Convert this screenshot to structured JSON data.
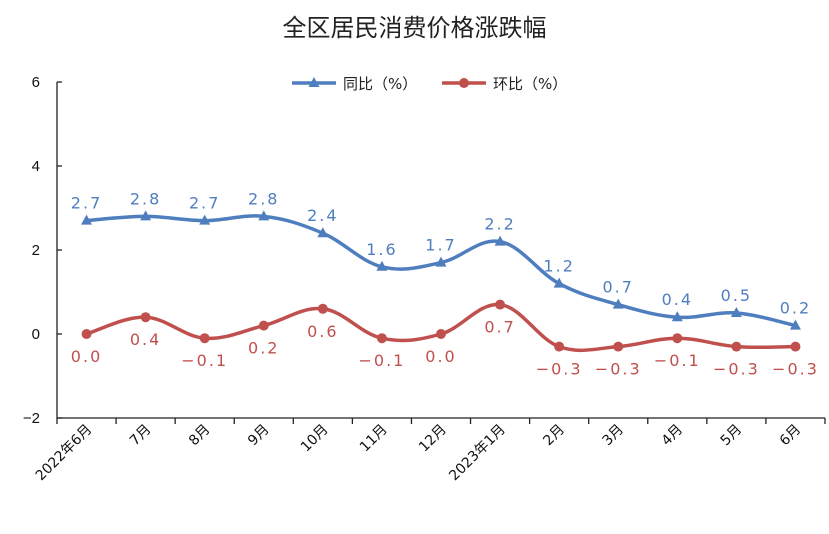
{
  "chart_data": {
    "type": "line",
    "title": "全区居民消费价格涨跌幅",
    "xlabel": "",
    "ylabel": "",
    "ylim": [
      -2,
      6
    ],
    "yticks": [
      -2,
      0,
      2,
      4,
      6
    ],
    "categories": [
      "2022年6月",
      "7月",
      "8月",
      "9月",
      "10月",
      "11月",
      "12月",
      "2023年1月",
      "2月",
      "3月",
      "4月",
      "5月",
      "6月"
    ],
    "legend_position": "top-center",
    "grid": false,
    "series": [
      {
        "name": "同比（%）",
        "color": "#4f7ebf",
        "marker": "triangle",
        "values": [
          2.7,
          2.8,
          2.7,
          2.8,
          2.4,
          1.6,
          1.7,
          2.2,
          1.2,
          0.7,
          0.4,
          0.5,
          0.2
        ],
        "labels": [
          "2.7",
          "2.8",
          "2.7",
          "2.8",
          "2.4",
          "1.6",
          "1.7",
          "2.2",
          "1.2",
          "0.7",
          "0.4",
          "0.5",
          "0.2"
        ]
      },
      {
        "name": "环比（%）",
        "color": "#c0504d",
        "marker": "circle",
        "values": [
          0.0,
          0.4,
          -0.1,
          0.2,
          0.6,
          -0.1,
          0.0,
          0.7,
          -0.3,
          -0.3,
          -0.1,
          -0.3,
          -0.3
        ],
        "labels": [
          "0.0",
          "0.4",
          "−0.1",
          "0.2",
          "0.6",
          "−0.1",
          "0.0",
          "0.7",
          "−0.3",
          "−0.3",
          "−0.1",
          "−0.3",
          "−0.3"
        ]
      }
    ]
  }
}
